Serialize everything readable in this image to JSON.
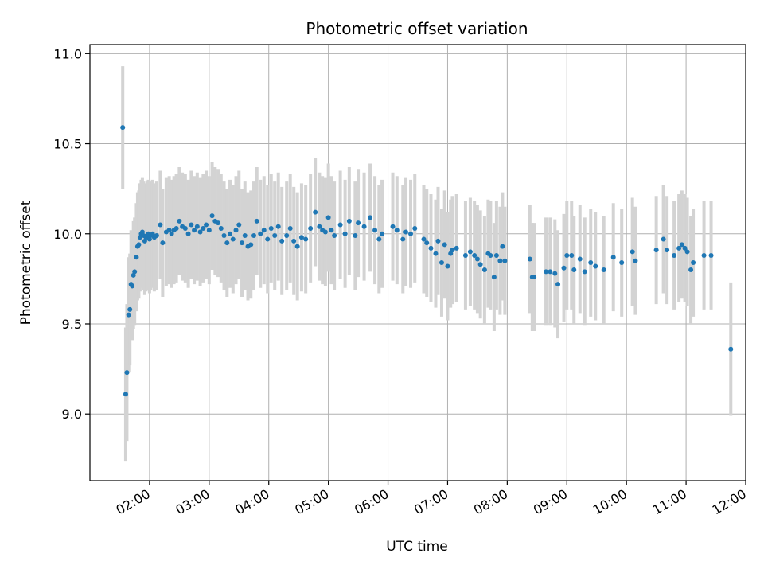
{
  "chart_data": {
    "type": "scatter",
    "title": "Photometric offset variation",
    "xlabel": "UTC time",
    "ylabel": "Photometric offset",
    "x_unit": "hours (UTC)",
    "xlim": [
      1.0,
      12.0
    ],
    "ylim": [
      8.63,
      11.05
    ],
    "x_ticks": [
      {
        "value": 2,
        "label": "02:00"
      },
      {
        "value": 3,
        "label": "03:00"
      },
      {
        "value": 4,
        "label": "04:00"
      },
      {
        "value": 5,
        "label": "05:00"
      },
      {
        "value": 6,
        "label": "06:00"
      },
      {
        "value": 7,
        "label": "07:00"
      },
      {
        "value": 8,
        "label": "08:00"
      },
      {
        "value": 9,
        "label": "09:00"
      },
      {
        "value": 10,
        "label": "10:00"
      },
      {
        "value": 11,
        "label": "11:00"
      },
      {
        "value": 12,
        "label": "12:00"
      }
    ],
    "y_ticks": [
      {
        "value": 9.0,
        "label": "9.0"
      },
      {
        "value": 9.5,
        "label": "9.5"
      },
      {
        "value": 10.0,
        "label": "10.0"
      },
      {
        "value": 10.5,
        "label": "10.5"
      },
      {
        "value": 11.0,
        "label": "11.0"
      }
    ],
    "grid": true,
    "colors": {
      "points": "#1f77b4",
      "errorbars": "#d3d3d3",
      "grid": "#b0b0b0"
    },
    "points": [
      [
        1.55,
        10.59,
        0.34
      ],
      [
        1.6,
        9.11,
        0.37
      ],
      [
        1.62,
        9.23,
        0.38
      ],
      [
        1.65,
        9.55,
        0.32
      ],
      [
        1.67,
        9.58,
        0.31
      ],
      [
        1.69,
        9.72,
        0.3
      ],
      [
        1.71,
        9.71,
        0.3
      ],
      [
        1.73,
        9.77,
        0.3
      ],
      [
        1.75,
        9.79,
        0.3
      ],
      [
        1.78,
        9.87,
        0.3
      ],
      [
        1.8,
        9.93,
        0.3
      ],
      [
        1.82,
        9.94,
        0.3
      ],
      [
        1.84,
        9.98,
        0.3
      ],
      [
        1.86,
        10.0,
        0.3
      ],
      [
        1.88,
        10.01,
        0.3
      ],
      [
        1.9,
        9.99,
        0.3
      ],
      [
        1.92,
        9.96,
        0.3
      ],
      [
        1.94,
        9.98,
        0.3
      ],
      [
        1.96,
        9.99,
        0.3
      ],
      [
        1.98,
        10.0,
        0.3
      ],
      [
        2.0,
        9.97,
        0.3
      ],
      [
        2.02,
        9.99,
        0.3
      ],
      [
        2.05,
        10.0,
        0.3
      ],
      [
        2.08,
        9.98,
        0.3
      ],
      [
        2.12,
        9.99,
        0.3
      ],
      [
        2.18,
        10.05,
        0.3
      ],
      [
        2.22,
        9.95,
        0.3
      ],
      [
        2.28,
        10.01,
        0.3
      ],
      [
        2.33,
        10.02,
        0.3
      ],
      [
        2.37,
        10.0,
        0.3
      ],
      [
        2.41,
        10.02,
        0.3
      ],
      [
        2.45,
        10.03,
        0.3
      ],
      [
        2.5,
        10.07,
        0.3
      ],
      [
        2.55,
        10.04,
        0.3
      ],
      [
        2.6,
        10.03,
        0.3
      ],
      [
        2.65,
        10.0,
        0.3
      ],
      [
        2.7,
        10.05,
        0.3
      ],
      [
        2.75,
        10.02,
        0.3
      ],
      [
        2.8,
        10.04,
        0.3
      ],
      [
        2.85,
        10.01,
        0.3
      ],
      [
        2.9,
        10.03,
        0.3
      ],
      [
        2.95,
        10.05,
        0.3
      ],
      [
        3.0,
        10.02,
        0.3
      ],
      [
        3.05,
        10.1,
        0.3
      ],
      [
        3.1,
        10.07,
        0.3
      ],
      [
        3.15,
        10.06,
        0.3
      ],
      [
        3.2,
        10.03,
        0.3
      ],
      [
        3.25,
        9.99,
        0.3
      ],
      [
        3.3,
        9.95,
        0.3
      ],
      [
        3.35,
        10.0,
        0.3
      ],
      [
        3.4,
        9.97,
        0.3
      ],
      [
        3.45,
        10.02,
        0.3
      ],
      [
        3.5,
        10.05,
        0.3
      ],
      [
        3.55,
        9.95,
        0.3
      ],
      [
        3.6,
        9.99,
        0.3
      ],
      [
        3.65,
        9.93,
        0.3
      ],
      [
        3.7,
        9.94,
        0.3
      ],
      [
        3.75,
        9.99,
        0.3
      ],
      [
        3.8,
        10.07,
        0.3
      ],
      [
        3.86,
        10.0,
        0.3
      ],
      [
        3.92,
        10.02,
        0.3
      ],
      [
        3.98,
        9.97,
        0.3
      ],
      [
        4.04,
        10.03,
        0.3
      ],
      [
        4.1,
        9.99,
        0.3
      ],
      [
        4.16,
        10.04,
        0.3
      ],
      [
        4.22,
        9.96,
        0.3
      ],
      [
        4.3,
        9.99,
        0.3
      ],
      [
        4.36,
        10.03,
        0.3
      ],
      [
        4.42,
        9.96,
        0.3
      ],
      [
        4.48,
        9.93,
        0.3
      ],
      [
        4.55,
        9.98,
        0.3
      ],
      [
        4.62,
        9.97,
        0.3
      ],
      [
        4.7,
        10.03,
        0.3
      ],
      [
        4.78,
        10.12,
        0.3
      ],
      [
        4.85,
        10.04,
        0.3
      ],
      [
        4.9,
        10.02,
        0.3
      ],
      [
        4.95,
        10.01,
        0.3
      ],
      [
        5.0,
        10.09,
        0.3
      ],
      [
        5.05,
        10.02,
        0.3
      ],
      [
        5.1,
        9.99,
        0.3
      ],
      [
        5.2,
        10.05,
        0.3
      ],
      [
        5.28,
        10.0,
        0.3
      ],
      [
        5.35,
        10.07,
        0.3
      ],
      [
        5.45,
        9.99,
        0.3
      ],
      [
        5.5,
        10.06,
        0.3
      ],
      [
        5.6,
        10.04,
        0.3
      ],
      [
        5.7,
        10.09,
        0.3
      ],
      [
        5.78,
        10.02,
        0.3
      ],
      [
        5.85,
        9.97,
        0.3
      ],
      [
        5.9,
        10.0,
        0.3
      ],
      [
        6.08,
        10.04,
        0.3
      ],
      [
        6.15,
        10.02,
        0.3
      ],
      [
        6.25,
        9.97,
        0.3
      ],
      [
        6.3,
        10.01,
        0.3
      ],
      [
        6.38,
        10.0,
        0.3
      ],
      [
        6.45,
        10.03,
        0.3
      ],
      [
        6.6,
        9.97,
        0.3
      ],
      [
        6.65,
        9.95,
        0.3
      ],
      [
        6.72,
        9.92,
        0.3
      ],
      [
        6.8,
        9.89,
        0.3
      ],
      [
        6.84,
        9.96,
        0.3
      ],
      [
        6.9,
        9.84,
        0.3
      ],
      [
        6.95,
        9.94,
        0.3
      ],
      [
        7.0,
        9.82,
        0.3
      ],
      [
        7.05,
        9.89,
        0.3
      ],
      [
        7.08,
        9.91,
        0.3
      ],
      [
        7.15,
        9.92,
        0.3
      ],
      [
        7.3,
        9.88,
        0.3
      ],
      [
        7.38,
        9.9,
        0.3
      ],
      [
        7.45,
        9.88,
        0.3
      ],
      [
        7.5,
        9.86,
        0.3
      ],
      [
        7.55,
        9.83,
        0.3
      ],
      [
        7.62,
        9.8,
        0.3
      ],
      [
        7.68,
        9.89,
        0.3
      ],
      [
        7.72,
        9.88,
        0.3
      ],
      [
        7.78,
        9.76,
        0.3
      ],
      [
        7.82,
        9.88,
        0.3
      ],
      [
        7.88,
        9.85,
        0.3
      ],
      [
        7.92,
        9.93,
        0.3
      ],
      [
        7.96,
        9.85,
        0.3
      ],
      [
        8.38,
        9.86,
        0.3
      ],
      [
        8.42,
        9.76,
        0.3
      ],
      [
        8.45,
        9.76,
        0.3
      ],
      [
        8.65,
        9.79,
        0.3
      ],
      [
        8.72,
        9.79,
        0.3
      ],
      [
        8.8,
        9.78,
        0.3
      ],
      [
        8.85,
        9.72,
        0.3
      ],
      [
        8.95,
        9.81,
        0.3
      ],
      [
        9.0,
        9.88,
        0.3
      ],
      [
        9.08,
        9.88,
        0.3
      ],
      [
        9.12,
        9.8,
        0.3
      ],
      [
        9.22,
        9.86,
        0.3
      ],
      [
        9.3,
        9.79,
        0.3
      ],
      [
        9.4,
        9.84,
        0.3
      ],
      [
        9.48,
        9.82,
        0.3
      ],
      [
        9.62,
        9.8,
        0.3
      ],
      [
        9.78,
        9.87,
        0.3
      ],
      [
        9.92,
        9.84,
        0.3
      ],
      [
        10.1,
        9.9,
        0.3
      ],
      [
        10.15,
        9.85,
        0.3
      ],
      [
        10.5,
        9.91,
        0.3
      ],
      [
        10.62,
        9.97,
        0.3
      ],
      [
        10.68,
        9.91,
        0.3
      ],
      [
        10.8,
        9.88,
        0.3
      ],
      [
        10.88,
        9.92,
        0.3
      ],
      [
        10.93,
        9.94,
        0.3
      ],
      [
        10.98,
        9.92,
        0.3
      ],
      [
        11.02,
        9.9,
        0.3
      ],
      [
        11.08,
        9.8,
        0.3
      ],
      [
        11.12,
        9.84,
        0.3
      ],
      [
        11.3,
        9.88,
        0.3
      ],
      [
        11.42,
        9.88,
        0.3
      ],
      [
        11.75,
        9.36,
        0.37
      ]
    ]
  }
}
